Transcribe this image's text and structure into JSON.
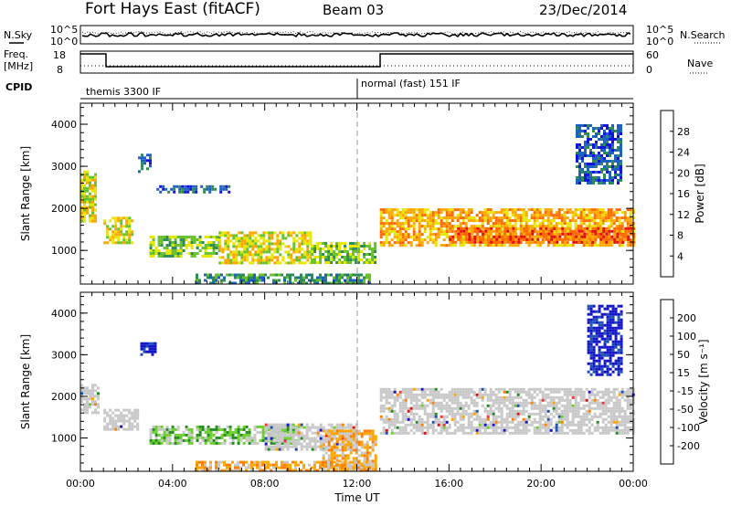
{
  "header": {
    "station": "Fort Hays East (fitACF)",
    "beam": "Beam 03",
    "date": "23/Dec/2014"
  },
  "strip": {
    "nsky_label": "N.Sky",
    "nsearch_label": "N.Search",
    "noise_ticks": [
      "10^5",
      "10^0"
    ],
    "freq_label": "Freq.",
    "freq_unit": "[MHz]",
    "freq_ticks": [
      "18",
      "8"
    ],
    "nave_label": "Nave",
    "nave_ticks": [
      "60",
      "0"
    ],
    "cpid_label": "CPID",
    "cpid_segments": [
      {
        "label": "themis 3300 IF",
        "start": 0,
        "end": 12
      },
      {
        "label": "normal (fast) 151 IF",
        "start": 12,
        "end": 24
      }
    ]
  },
  "chart_data": [
    {
      "type": "heatmap",
      "panel": "power",
      "xlabel": "",
      "ylabel": "Slant Range [km]",
      "xlim": [
        0,
        24
      ],
      "ylim": [
        200,
        4500
      ],
      "yticks": [
        "1000",
        "2000",
        "3000",
        "4000"
      ],
      "colorbar": {
        "label": "Power [dB]",
        "ticks": [
          "4",
          "8",
          "12",
          "16",
          "20",
          "24",
          "28"
        ],
        "colors": [
          "#1414e0",
          "#2060c0",
          "#2e8b57",
          "#66c22a",
          "#e6e600",
          "#ffa500",
          "#ff6a00",
          "#e01010"
        ]
      },
      "regions": [
        {
          "t0": 0.0,
          "t1": 0.6,
          "r0": 1700,
          "r1": 2900,
          "level": 4
        },
        {
          "t0": 1.0,
          "t1": 2.2,
          "r0": 1150,
          "r1": 1800,
          "level": 4
        },
        {
          "t0": 2.5,
          "t1": 3.0,
          "r0": 2900,
          "r1": 3300,
          "level": 1
        },
        {
          "t0": 3.0,
          "t1": 6.0,
          "r0": 850,
          "r1": 1350,
          "level": 3
        },
        {
          "t0": 3.3,
          "t1": 6.5,
          "r0": 2400,
          "r1": 2550,
          "level": 1
        },
        {
          "t0": 6.0,
          "t1": 10.0,
          "r0": 700,
          "r1": 1450,
          "level": 4
        },
        {
          "t0": 10.0,
          "t1": 12.8,
          "r0": 700,
          "r1": 1200,
          "level": 3
        },
        {
          "t0": 5.0,
          "t1": 12.5,
          "r0": 250,
          "r1": 450,
          "level": 2
        },
        {
          "t0": 13.0,
          "t1": 24.0,
          "r0": 1100,
          "r1": 2000,
          "level": 5
        },
        {
          "t0": 16.0,
          "t1": 24.0,
          "r0": 1200,
          "r1": 1550,
          "level": 6
        },
        {
          "t0": 21.5,
          "t1": 23.5,
          "r0": 2600,
          "r1": 4000,
          "level": 1
        }
      ]
    },
    {
      "type": "heatmap",
      "panel": "velocity",
      "xlabel": "Time UT",
      "ylabel": "Slant Range [km]",
      "xlim": [
        0,
        24
      ],
      "ylim": [
        200,
        4500
      ],
      "xticks": [
        "00:00",
        "04:00",
        "08:00",
        "12:00",
        "16:00",
        "20:00",
        "00:00"
      ],
      "yticks": [
        "1000",
        "2000",
        "3000",
        "4000"
      ],
      "colorbar": {
        "label": "Velocity [m s⁻¹]",
        "ticks": [
          "200",
          "100",
          "50",
          "15",
          "-15",
          "-50",
          "-100",
          "-200"
        ],
        "colors": [
          "#1414c8",
          "#1e50b4",
          "#228b22",
          "#6ccf2a",
          "#c8c8c8",
          "#ffa500",
          "#ff7f00",
          "#ff3030",
          "#e01010"
        ]
      },
      "regions": [
        {
          "t0": 0.0,
          "t1": 0.8,
          "r0": 1600,
          "r1": 2300,
          "level": 4
        },
        {
          "t0": 1.0,
          "t1": 2.5,
          "r0": 1200,
          "r1": 1700,
          "level": 4
        },
        {
          "t0": 3.0,
          "t1": 5.5,
          "r0": 850,
          "r1": 1300,
          "level": 3
        },
        {
          "t0": 5.5,
          "t1": 9.5,
          "r0": 900,
          "r1": 1300,
          "level": 3
        },
        {
          "t0": 8.0,
          "t1": 12.0,
          "r0": 750,
          "r1": 1350,
          "level": 4
        },
        {
          "t0": 10.5,
          "t1": 12.8,
          "r0": 250,
          "r1": 1200,
          "level": 5
        },
        {
          "t0": 5.0,
          "t1": 12.5,
          "r0": 250,
          "r1": 450,
          "level": 5
        },
        {
          "t0": 13.0,
          "t1": 24.0,
          "r0": 1100,
          "r1": 2200,
          "level": 4
        },
        {
          "t0": 22.0,
          "t1": 23.5,
          "r0": 2500,
          "r1": 4200,
          "level": 0
        },
        {
          "t0": 2.6,
          "t1": 3.2,
          "r0": 3000,
          "r1": 3300,
          "level": 0
        }
      ]
    }
  ]
}
